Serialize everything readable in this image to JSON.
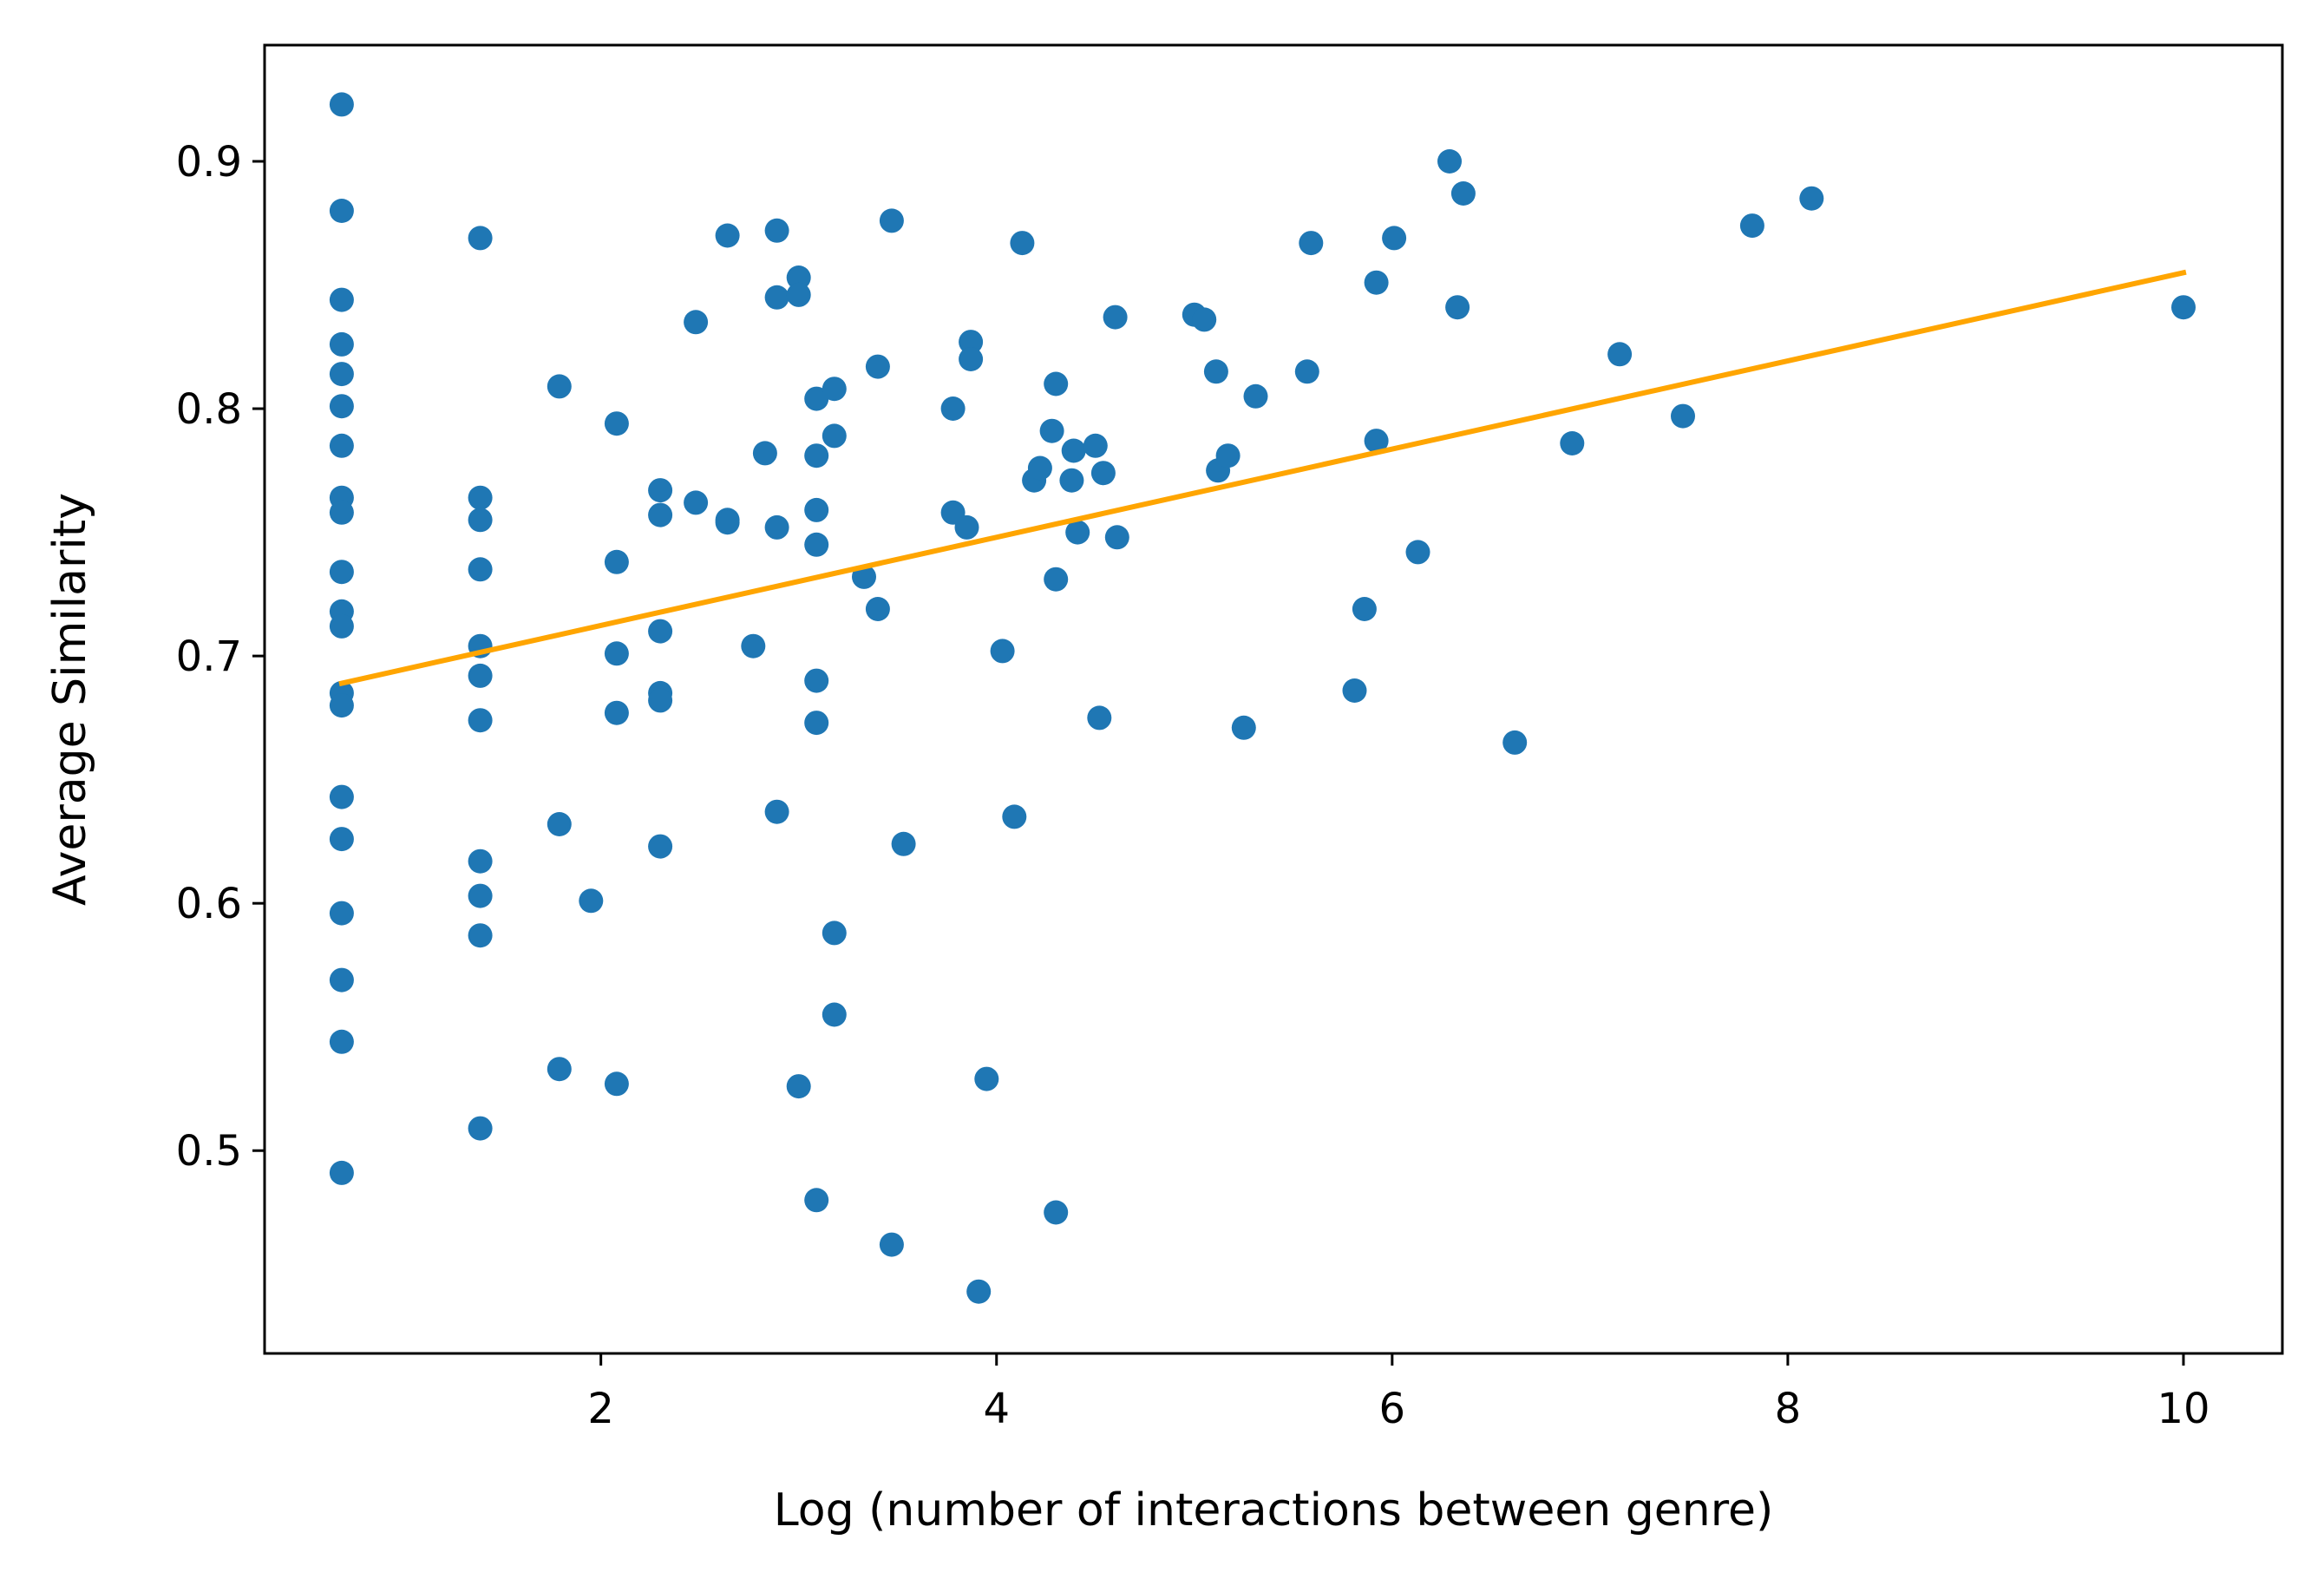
{
  "chart_data": {
    "type": "scatter",
    "title": "",
    "xlabel": "Log (number of interactions between genre)",
    "ylabel": "Average Similarity",
    "xlim": [
      0.3,
      10.5
    ],
    "ylim": [
      0.418,
      0.947
    ],
    "xticks": [
      2,
      4,
      6,
      8,
      10
    ],
    "yticks": [
      0.5,
      0.6,
      0.7,
      0.8,
      0.9
    ],
    "xtick_labels": [
      "2",
      "4",
      "6",
      "8",
      "10"
    ],
    "ytick_labels": [
      "0.5",
      "0.6",
      "0.7",
      "0.8",
      "0.9"
    ],
    "grid": false,
    "legend": "none",
    "series": [
      {
        "type": "scatter",
        "color": "#1f77b4",
        "points": [
          [
            0.69,
            0.923
          ],
          [
            0.69,
            0.88
          ],
          [
            0.69,
            0.844
          ],
          [
            0.69,
            0.826
          ],
          [
            0.69,
            0.814
          ],
          [
            0.69,
            0.801
          ],
          [
            0.69,
            0.785
          ],
          [
            0.69,
            0.764
          ],
          [
            0.69,
            0.758
          ],
          [
            0.69,
            0.734
          ],
          [
            0.69,
            0.718
          ],
          [
            0.69,
            0.712
          ],
          [
            0.69,
            0.685
          ],
          [
            0.69,
            0.68
          ],
          [
            0.69,
            0.643
          ],
          [
            0.69,
            0.626
          ],
          [
            0.69,
            0.596
          ],
          [
            0.69,
            0.569
          ],
          [
            0.69,
            0.544
          ],
          [
            0.69,
            0.491
          ],
          [
            1.39,
            0.869
          ],
          [
            1.39,
            0.764
          ],
          [
            1.39,
            0.755
          ],
          [
            1.39,
            0.735
          ],
          [
            1.39,
            0.704
          ],
          [
            1.39,
            0.692
          ],
          [
            1.39,
            0.674
          ],
          [
            1.39,
            0.617
          ],
          [
            1.39,
            0.603
          ],
          [
            1.39,
            0.587
          ],
          [
            1.39,
            0.509
          ],
          [
            1.79,
            0.809
          ],
          [
            1.79,
            0.632
          ],
          [
            1.79,
            0.533
          ],
          [
            1.95,
            0.601
          ],
          [
            2.08,
            0.794
          ],
          [
            2.08,
            0.738
          ],
          [
            2.08,
            0.701
          ],
          [
            2.08,
            0.677
          ],
          [
            2.08,
            0.527
          ],
          [
            2.3,
            0.767
          ],
          [
            2.3,
            0.757
          ],
          [
            2.3,
            0.71
          ],
          [
            2.3,
            0.685
          ],
          [
            2.3,
            0.682
          ],
          [
            2.3,
            0.623
          ],
          [
            2.48,
            0.835
          ],
          [
            2.48,
            0.762
          ],
          [
            2.64,
            0.87
          ],
          [
            2.64,
            0.755
          ],
          [
            2.64,
            0.754
          ],
          [
            2.77,
            0.704
          ],
          [
            2.83,
            0.782
          ],
          [
            2.89,
            0.872
          ],
          [
            2.89,
            0.845
          ],
          [
            2.89,
            0.752
          ],
          [
            2.89,
            0.637
          ],
          [
            3.0,
            0.853
          ],
          [
            3.0,
            0.846
          ],
          [
            3.0,
            0.526
          ],
          [
            3.09,
            0.804
          ],
          [
            3.09,
            0.781
          ],
          [
            3.09,
            0.759
          ],
          [
            3.09,
            0.745
          ],
          [
            3.09,
            0.69
          ],
          [
            3.09,
            0.673
          ],
          [
            3.09,
            0.48
          ],
          [
            3.18,
            0.808
          ],
          [
            3.18,
            0.789
          ],
          [
            3.18,
            0.588
          ],
          [
            3.18,
            0.555
          ],
          [
            3.33,
            0.732
          ],
          [
            3.4,
            0.817
          ],
          [
            3.4,
            0.719
          ],
          [
            3.47,
            0.876
          ],
          [
            3.47,
            0.462
          ],
          [
            3.53,
            0.624
          ],
          [
            3.78,
            0.8
          ],
          [
            3.78,
            0.758
          ],
          [
            3.85,
            0.752
          ],
          [
            3.87,
            0.827
          ],
          [
            3.87,
            0.82
          ],
          [
            3.91,
            0.443
          ],
          [
            3.95,
            0.529
          ],
          [
            4.03,
            0.702
          ],
          [
            4.09,
            0.635
          ],
          [
            4.13,
            0.867
          ],
          [
            4.19,
            0.771
          ],
          [
            4.22,
            0.776
          ],
          [
            4.28,
            0.791
          ],
          [
            4.3,
            0.81
          ],
          [
            4.3,
            0.731
          ],
          [
            4.3,
            0.475
          ],
          [
            4.38,
            0.771
          ],
          [
            4.39,
            0.783
          ],
          [
            4.41,
            0.75
          ],
          [
            4.5,
            0.785
          ],
          [
            4.52,
            0.675
          ],
          [
            4.54,
            0.774
          ],
          [
            4.6,
            0.837
          ],
          [
            4.61,
            0.748
          ],
          [
            5.0,
            0.838
          ],
          [
            5.05,
            0.836
          ],
          [
            5.11,
            0.815
          ],
          [
            5.12,
            0.775
          ],
          [
            5.17,
            0.781
          ],
          [
            5.25,
            0.671
          ],
          [
            5.31,
            0.805
          ],
          [
            5.57,
            0.815
          ],
          [
            5.59,
            0.867
          ],
          [
            5.81,
            0.686
          ],
          [
            5.86,
            0.719
          ],
          [
            5.92,
            0.851
          ],
          [
            5.92,
            0.787
          ],
          [
            6.01,
            0.869
          ],
          [
            6.13,
            0.742
          ],
          [
            6.29,
            0.9
          ],
          [
            6.33,
            0.841
          ],
          [
            6.36,
            0.887
          ],
          [
            6.62,
            0.665
          ],
          [
            6.91,
            0.786
          ],
          [
            7.15,
            0.822
          ],
          [
            7.47,
            0.797
          ],
          [
            7.82,
            0.874
          ],
          [
            8.12,
            0.885
          ],
          [
            10.0,
            0.841
          ]
        ]
      },
      {
        "type": "line",
        "color": "#ffa500",
        "x": [
          0.69,
          10.0
        ],
        "y": [
          0.689,
          0.855
        ]
      }
    ]
  }
}
